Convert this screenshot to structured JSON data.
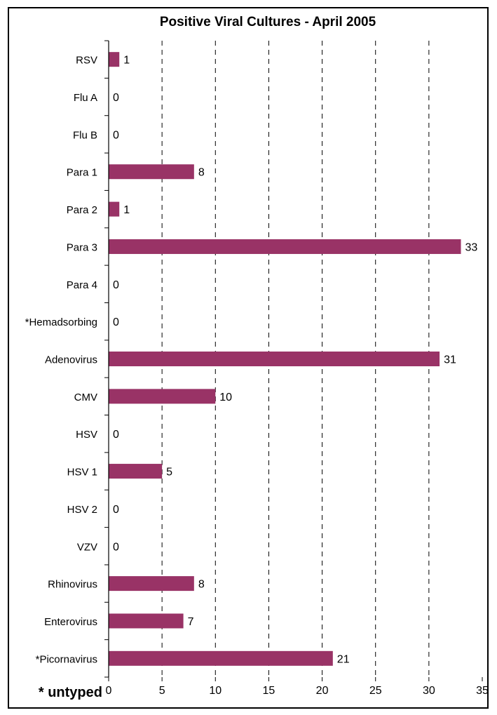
{
  "chart_data": {
    "type": "bar",
    "orientation": "horizontal",
    "title": "Positive Viral Cultures - April 2005",
    "footnote": "* untyped",
    "categories": [
      "RSV",
      "Flu A",
      "Flu B",
      "Para 1",
      "Para 2",
      "Para 3",
      "Para 4",
      "*Hemadsorbing",
      "Adenovirus",
      "CMV",
      "HSV",
      "HSV 1",
      "HSV 2",
      "VZV",
      "Rhinovirus",
      "Enterovirus",
      "*Picornavirus"
    ],
    "values": [
      1,
      0,
      0,
      8,
      1,
      33,
      0,
      0,
      31,
      10,
      0,
      5,
      0,
      0,
      8,
      7,
      21
    ],
    "xlim": [
      0,
      35
    ],
    "xticks": [
      0,
      5,
      10,
      15,
      20,
      25,
      30,
      35
    ],
    "grid": "vertical dashed",
    "legend": "none",
    "colors": {
      "bar": "#993366",
      "grid": "#000000",
      "frame": "#000000"
    }
  }
}
